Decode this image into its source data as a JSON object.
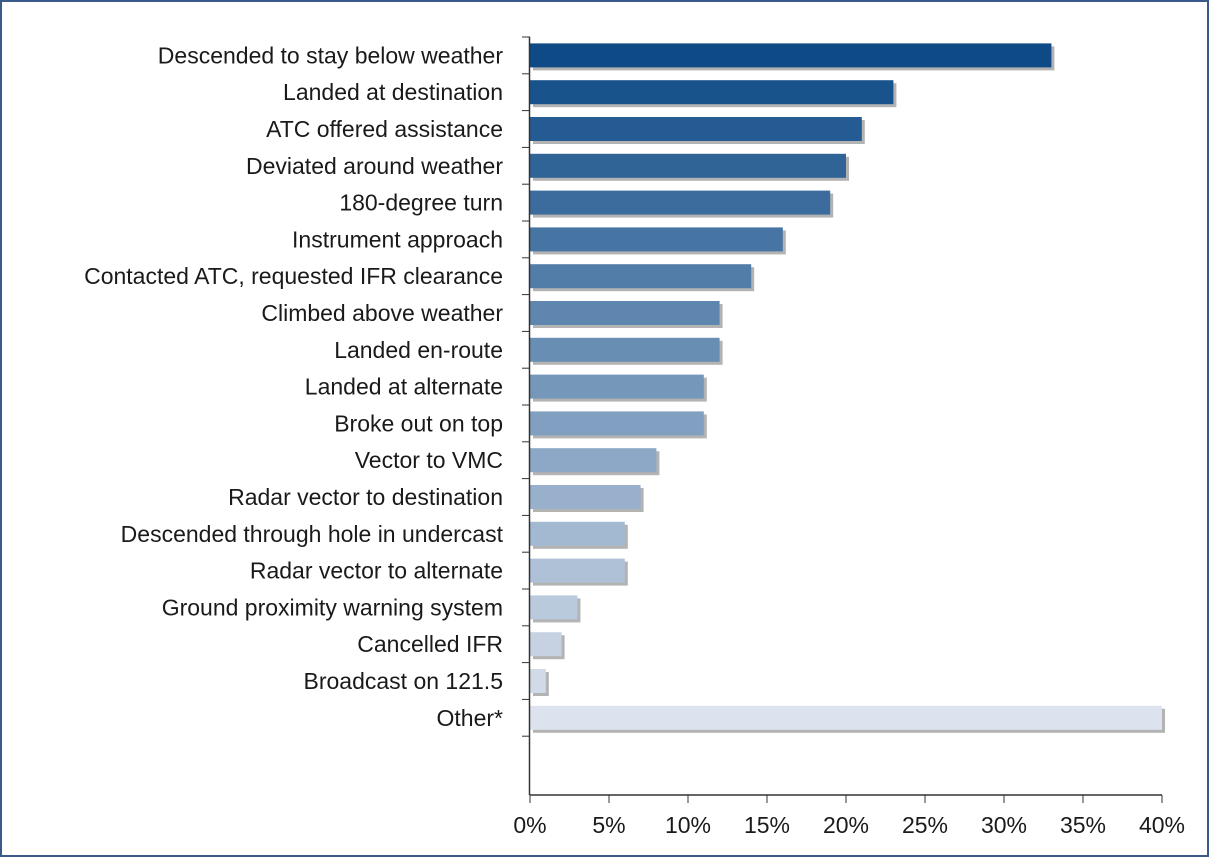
{
  "chart_data": {
    "type": "bar",
    "orientation": "horizontal",
    "title": "",
    "xlabel": "",
    "ylabel": "",
    "categories": [
      "Descended to stay below weather",
      "Landed at destination",
      "ATC offered assistance",
      "Deviated around weather",
      "180-degree turn",
      "Instrument approach",
      "Contacted ATC, requested IFR clearance",
      "Climbed above weather",
      "Landed en-route",
      "Landed at alternate",
      "Broke out on top",
      "Vector to VMC",
      "Radar vector to destination",
      "Descended through hole in undercast",
      "Radar vector to alternate",
      "Ground proximity warning system",
      "Cancelled IFR",
      "Broadcast on 121.5",
      "Other*"
    ],
    "values": [
      33,
      23,
      21,
      20,
      19,
      16,
      14,
      12,
      12,
      11,
      11,
      8,
      7,
      6,
      6,
      3,
      2,
      1,
      40
    ],
    "xlim": [
      0,
      40
    ],
    "xticks": [
      0,
      5,
      10,
      15,
      20,
      25,
      30,
      35,
      40
    ],
    "xtick_labels": [
      "0%",
      "5%",
      "10%",
      "15%",
      "20%",
      "25%",
      "30%",
      "35%",
      "40%"
    ],
    "grid": false,
    "legend": "none"
  },
  "colors": {
    "bar_dark": "#0d4a86",
    "bar_light": "#dde3ee",
    "shadow": "#9a9a9a",
    "axis": "#333333",
    "frame": "#3a5a8c"
  }
}
